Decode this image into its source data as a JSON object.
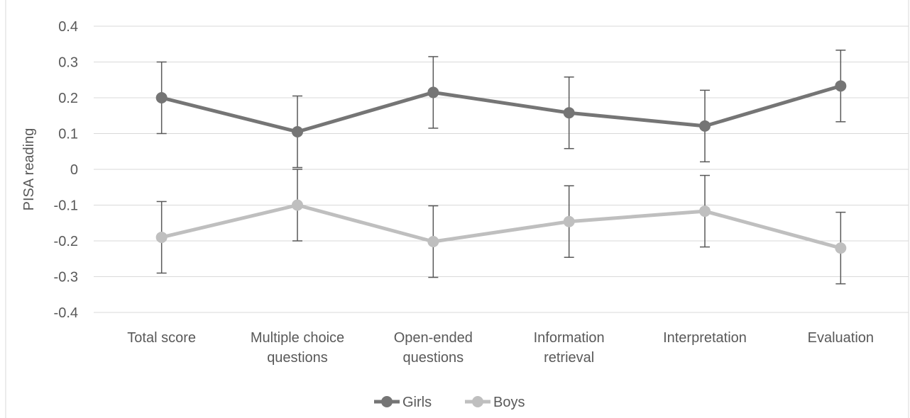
{
  "chart_data": {
    "type": "line",
    "title": "",
    "xlabel": "",
    "ylabel": "PISA reading",
    "ylim": [
      -0.4,
      0.4
    ],
    "yticks": [
      "0.4",
      "0.3",
      "0.2",
      "0.1",
      "0",
      "-0.1",
      "-0.2",
      "-0.3",
      "-0.4"
    ],
    "ytick_values": [
      0.4,
      0.3,
      0.2,
      0.1,
      0,
      -0.1,
      -0.2,
      -0.3,
      -0.4
    ],
    "categories": [
      [
        "Total score"
      ],
      [
        "Multiple choice",
        "questions"
      ],
      [
        "Open-ended",
        "questions"
      ],
      [
        "Information",
        "retrieval"
      ],
      [
        "Interpretation"
      ],
      [
        "Evaluation"
      ]
    ],
    "grid": true,
    "legend_position": "bottom",
    "series": [
      {
        "name": "Girls",
        "color": "#757575",
        "values": [
          0.2,
          0.105,
          0.215,
          0.158,
          0.121,
          0.233
        ],
        "error": 0.1
      },
      {
        "name": "Boys",
        "color": "#BFBFBF",
        "values": [
          -0.19,
          -0.1,
          -0.202,
          -0.146,
          -0.117,
          -0.22
        ],
        "error": 0.1
      }
    ]
  }
}
